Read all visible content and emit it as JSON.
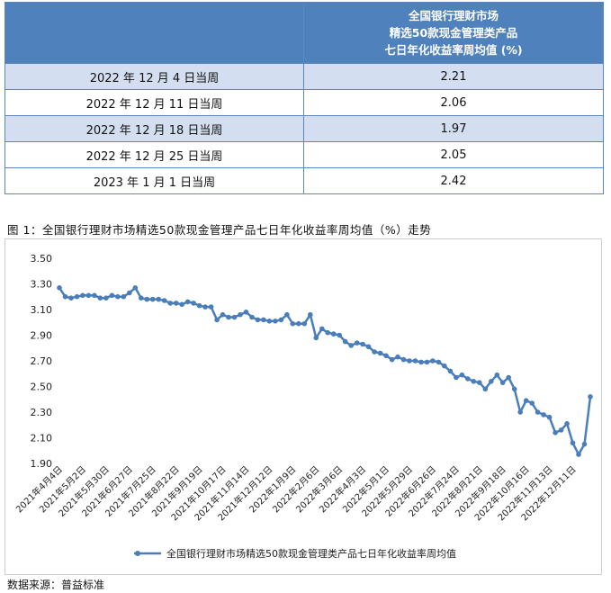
{
  "table": {
    "header_lines": [
      "全国银行理财市场",
      "精选50款现金管理类产品",
      "七日年化收益率周均值 (%)"
    ],
    "rows": [
      {
        "week": "2022 年 12 月 4 日当周",
        "value": "2.21"
      },
      {
        "week": "2022 年 12 月 11 日当周",
        "value": "2.06"
      },
      {
        "week": "2022 年 12 月 18 日当周",
        "value": "1.97"
      },
      {
        "week": "2022 年 12 月 25 日当周",
        "value": "2.05"
      },
      {
        "week": "2023 年 1 月 1 日当周",
        "value": "2.42"
      }
    ]
  },
  "caption": "图 1：全国银行理财市场精选50款现金管理产品七日年化收益率周均值（%）走势",
  "source": "数据来源：普益标准",
  "chart_data": {
    "type": "line",
    "title": "",
    "xlabel": "",
    "ylabel": "",
    "ylim": [
      1.9,
      3.5
    ],
    "yticks": [
      "3.50",
      "3.30",
      "3.10",
      "2.90",
      "2.70",
      "2.50",
      "2.30",
      "2.10",
      "1.90"
    ],
    "xticks": [
      "2021年4月4日",
      "2021年5月2日",
      "2021年5月30日",
      "2021年6月27日",
      "2021年7月25日",
      "2021年8月22日",
      "2021年9月19日",
      "2021年10月17日",
      "2021年11月14日",
      "2021年12月12日",
      "2022年1月9日",
      "2022年2月6日",
      "2022年3月6日",
      "2022年4月3日",
      "2022年5月1日",
      "2022年5月29日",
      "2022年6月26日",
      "2022年7月24日",
      "2022年8月21日",
      "2022年9月18日",
      "2022年10月16日",
      "2022年11月13日",
      "2022年12月11日"
    ],
    "grid": false,
    "legend_position": "bottom",
    "color": "#4a7ebb",
    "series": [
      {
        "name": "全国银行理财市场精选50款现金管理类产品七日年化收益率周均值",
        "values": [
          3.27,
          3.2,
          3.19,
          3.2,
          3.21,
          3.21,
          3.21,
          3.19,
          3.19,
          3.21,
          3.2,
          3.2,
          3.23,
          3.27,
          3.19,
          3.18,
          3.18,
          3.18,
          3.17,
          3.15,
          3.15,
          3.14,
          3.16,
          3.15,
          3.13,
          3.12,
          3.12,
          3.02,
          3.06,
          3.04,
          3.04,
          3.06,
          3.08,
          3.04,
          3.02,
          3.02,
          3.01,
          3.01,
          3.02,
          3.06,
          2.99,
          2.99,
          2.99,
          3.06,
          2.88,
          2.95,
          2.92,
          2.91,
          2.9,
          2.85,
          2.82,
          2.84,
          2.83,
          2.81,
          2.77,
          2.76,
          2.74,
          2.71,
          2.73,
          2.71,
          2.7,
          2.7,
          2.69,
          2.69,
          2.7,
          2.69,
          2.66,
          2.62,
          2.57,
          2.59,
          2.56,
          2.54,
          2.53,
          2.48,
          2.54,
          2.59,
          2.53,
          2.57,
          2.48,
          2.3,
          2.39,
          2.37,
          2.3,
          2.28,
          2.26,
          2.14,
          2.16,
          2.21,
          2.06,
          1.97,
          2.05,
          2.42
        ]
      }
    ]
  }
}
